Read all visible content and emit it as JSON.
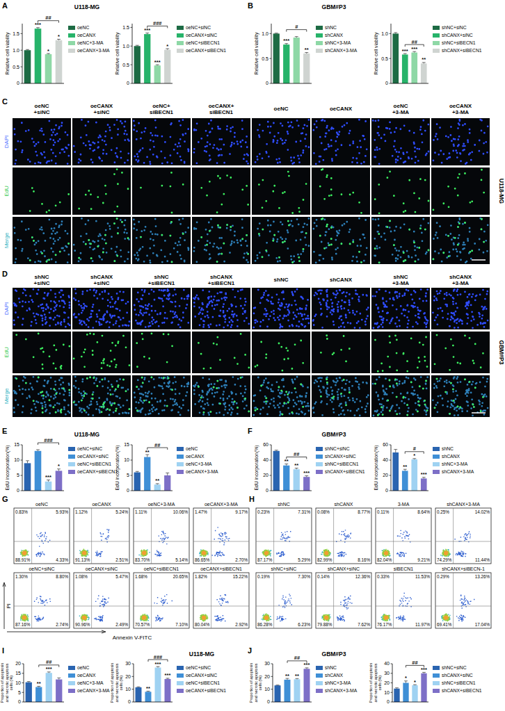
{
  "panels": [
    {
      "letter": "A",
      "title": "U118-MG"
    },
    {
      "letter": "B",
      "title": "GBM#P3"
    },
    {
      "letter": "C",
      "title": "U118-MG"
    },
    {
      "letter": "D",
      "title": "GBM#P3"
    },
    {
      "letter": "E",
      "title": "U118-MG"
    },
    {
      "letter": "F",
      "title": "GBM#P3"
    },
    {
      "letter": "G"
    },
    {
      "letter": "H"
    },
    {
      "letter": "I",
      "title": "U118-MG"
    },
    {
      "letter": "J",
      "title": "GBM#P3"
    }
  ],
  "chart_data": [
    {
      "type": "bar",
      "y_label": "Relative cell viability",
      "categories": [
        "oeNC",
        "oeCANX",
        "oeNC+3-MA",
        "oeCANX+3-MA"
      ],
      "values": [
        1.0,
        1.65,
        0.88,
        1.3
      ],
      "errors": [
        0.02,
        0.03,
        0.02,
        0.03
      ],
      "colors": [
        "#1d6b44",
        "#27b36a",
        "#8ed8a6",
        "#cfd4d1"
      ],
      "annotations": [
        null,
        "***",
        "*",
        "*"
      ],
      "bracket": {
        "categories": [
          "oeCANX",
          "oeCANX+3-MA"
        ],
        "label": "##"
      },
      "ylim": [
        0,
        1.8
      ],
      "yticks": [
        0,
        0.5,
        {
          "value": 1,
          "label": "1.0"
        },
        1.5
      ],
      "legend": "right",
      "tick_labels": "y",
      "grid": false
    },
    {
      "type": "bar",
      "y_label": "Relative cell viability",
      "categories": [
        "oeNC+siNC",
        "oeCANX+siNC",
        "oeNC+siBECN1",
        "oeCANX+siBECN1"
      ],
      "values": [
        1.0,
        1.32,
        0.48,
        0.9
      ],
      "errors": [
        0.02,
        0.03,
        0.02,
        0.03
      ],
      "colors": [
        "#1d6b44",
        "#27b36a",
        "#8ed8a6",
        "#cfd4d1"
      ],
      "annotations": [
        null,
        "***",
        "***",
        "*"
      ],
      "bracket": {
        "categories": [
          "oeCANX+siNC",
          "oeCANX+siBECN1"
        ],
        "label": "###"
      },
      "ylim": [
        0,
        1.6
      ],
      "yticks": [
        0,
        0.5,
        {
          "value": 1,
          "label": "1.0"
        },
        1.5
      ],
      "legend": "right",
      "tick_labels": "y",
      "grid": false
    },
    {
      "type": "bar",
      "y_label": "Relative cell viability",
      "categories": [
        "shNC",
        "shCANX",
        "shNC+3-MA",
        "shCANX+3-MA"
      ],
      "values": [
        1.0,
        0.78,
        0.92,
        0.6
      ],
      "errors": [
        0.01,
        0.02,
        0.02,
        0.02
      ],
      "colors": [
        "#1d6b44",
        "#27b36a",
        "#8ed8a6",
        "#cfd4d1"
      ],
      "annotations": [
        null,
        "***",
        null,
        "**"
      ],
      "bracket": {
        "categories": [
          "shCANX",
          "shCANX+3-MA"
        ],
        "label": "#"
      },
      "ylim": [
        0,
        1.2
      ],
      "yticks": [
        0,
        0.5,
        {
          "value": 1,
          "label": "1.0"
        }
      ],
      "legend": "right",
      "tick_labels": "y",
      "grid": false
    },
    {
      "type": "bar",
      "y_label": "Relative cell viability",
      "categories": [
        "shNC+siNC",
        "shCANX+siNC",
        "shNC+siBECN1",
        "shCANX+siBECN1"
      ],
      "values": [
        1.0,
        0.58,
        0.62,
        0.4
      ],
      "errors": [
        0.02,
        0.02,
        0.02,
        0.02
      ],
      "colors": [
        "#1d6b44",
        "#27b36a",
        "#8ed8a6",
        "#cfd4d1"
      ],
      "annotations": [
        null,
        "***",
        "***",
        "**"
      ],
      "bracket": {
        "categories": [
          "shCANX+siNC",
          "shCANX+siBECN1"
        ],
        "label": "##"
      },
      "ylim": [
        0,
        1.2
      ],
      "yticks": [
        0,
        0.5,
        {
          "value": 1,
          "label": "1.0"
        }
      ],
      "legend": "right",
      "tick_labels": "y",
      "grid": false
    },
    {
      "type": "bar",
      "y_label": "EdU incorporation(%)",
      "categories": [
        "oeNC+siNC",
        "oeCANX+siNC",
        "oeNC+siBECN1",
        "oeCANX+siBECN1"
      ],
      "values": [
        9,
        13,
        3,
        6.5
      ],
      "errors": [
        0.8,
        0.4,
        0.5,
        0.6
      ],
      "colors": [
        "#2a64b0",
        "#3f8fd6",
        "#9fd2f2",
        "#7d6fc7"
      ],
      "annotations": [
        null,
        null,
        "***",
        "*"
      ],
      "bracket": {
        "categories": [
          "oeCANX+siNC",
          "oeCANX+siBECN1"
        ],
        "label": "###"
      },
      "ylim": [
        0,
        15
      ],
      "yticks": [
        0,
        5,
        10,
        15
      ],
      "legend": "right",
      "tick_labels": "y",
      "grid": false
    },
    {
      "type": "bar",
      "y_label": "EdU incorporation(%)",
      "categories": [
        "oeNC",
        "oeCANX",
        "oeNC+3-MA",
        "oeCANX+3-MA"
      ],
      "values": [
        6,
        11,
        2,
        5
      ],
      "errors": [
        0.3,
        0.8,
        0.3,
        0.8
      ],
      "colors": [
        "#2a64b0",
        "#3f8fd6",
        "#9fd2f2",
        "#7d6fc7"
      ],
      "annotations": [
        null,
        "**",
        "**",
        null
      ],
      "bracket": {
        "categories": [
          "oeCANX",
          "oeCANX+3-MA"
        ],
        "label": "##"
      },
      "ylim": [
        0,
        15
      ],
      "yticks": [
        0,
        5,
        10,
        15
      ],
      "legend": "right",
      "tick_labels": "y",
      "grid": false
    },
    {
      "type": "bar",
      "y_label": "EdU incorporation(%)",
      "categories": [
        "shNC+siNC",
        "shCANX+siNC",
        "shNC+siBECN1",
        "shCANX+siBECN1"
      ],
      "values": [
        52,
        33,
        28,
        18
      ],
      "errors": [
        1,
        2,
        1.5,
        1.5
      ],
      "colors": [
        "#2a64b0",
        "#3f8fd6",
        "#9fd2f2",
        "#7d6fc7"
      ],
      "annotations": [
        null,
        "**",
        "**",
        "***"
      ],
      "bracket": {
        "categories": [
          "shCANX+siNC",
          "shCANX+siBECN1"
        ],
        "label": "##"
      },
      "ylim": [
        0,
        60
      ],
      "yticks": [
        0,
        20,
        40,
        60
      ],
      "legend": "right",
      "tick_labels": "y",
      "grid": false
    },
    {
      "type": "bar",
      "y_label": "EdU incorporation(%)",
      "categories": [
        "shNC",
        "shCANX",
        "shNC+3-MA",
        "shCANX+3-MA"
      ],
      "values": [
        50,
        26,
        41,
        16
      ],
      "errors": [
        4,
        2,
        1,
        1.5
      ],
      "colors": [
        "#2a64b0",
        "#3f8fd6",
        "#9fd2f2",
        "#7d6fc7"
      ],
      "annotations": [
        null,
        "**",
        "*",
        "***"
      ],
      "bracket": {
        "categories": [
          "shCANX",
          "shCANX+3-MA"
        ],
        "label": "#"
      },
      "ylim": [
        0,
        60
      ],
      "yticks": [
        0,
        20,
        40,
        60
      ],
      "legend": "right",
      "tick_labels": "y",
      "grid": false
    },
    {
      "type": "bar",
      "y_label": "Proportion of apoptosis and necrotic apoptosis cells (%)",
      "categories": [
        "oeNC",
        "oeCANX",
        "oeNC+3-MA",
        "oeCANX+3-MA"
      ],
      "values": [
        10.3,
        7.8,
        15.2,
        11.8
      ],
      "errors": [
        0.4,
        0.4,
        0.5,
        0.8
      ],
      "colors": [
        "#2a64b0",
        "#3f8fd6",
        "#9fd2f2",
        "#7d6fc7"
      ],
      "annotations": [
        null,
        "**",
        "***",
        null
      ],
      "bracket": {
        "categories": [
          "oeCANX",
          "oeCANX+3-MA"
        ],
        "label": "##"
      },
      "ylim": [
        0,
        20
      ],
      "yticks": [
        0,
        5,
        10,
        15,
        20
      ],
      "legend": "right",
      "tick_labels": "y",
      "grid": false
    },
    {
      "type": "bar",
      "y_label": "Proportion of apoptosis and necrotic apoptosis cells (%)",
      "categories": [
        "oeNC+siNC",
        "oeCANX+siNC",
        "oeNC+siBECN1",
        "oeCANX+siBECN1"
      ],
      "values": [
        11.5,
        8,
        27,
        18
      ],
      "errors": [
        0.4,
        0.5,
        0.8,
        0.6
      ],
      "colors": [
        "#2a64b0",
        "#3f8fd6",
        "#9fd2f2",
        "#7d6fc7"
      ],
      "annotations": [
        null,
        "**",
        "***",
        "***"
      ],
      "bracket": {
        "categories": [
          "oeCANX+siNC",
          "oeCANX+siBECN1"
        ],
        "label": "###"
      },
      "ylim": [
        0,
        30
      ],
      "yticks": [
        0,
        10,
        20,
        30
      ],
      "legend": "right",
      "tick_labels": "y",
      "grid": false
    },
    {
      "type": "bar",
      "y_label": "Proportion of apoptosis and necrotic apoptosis cells (%)",
      "categories": [
        "shNC",
        "shCANX",
        "shNC+3-MA",
        "shCANX+3-MA"
      ],
      "values": [
        13,
        17.5,
        17.8,
        26
      ],
      "errors": [
        0.3,
        1,
        0.6,
        0.8
      ],
      "colors": [
        "#2a64b0",
        "#3f8fd6",
        "#9fd2f2",
        "#7d6fc7"
      ],
      "annotations": [
        null,
        "**",
        "**",
        "***"
      ],
      "bracket": {
        "categories": [
          "shCANX",
          "shCANX+3-MA"
        ],
        "label": "##"
      },
      "ylim": [
        0,
        30
      ],
      "yticks": [
        0,
        10,
        20,
        30
      ],
      "legend": "right",
      "tick_labels": "y",
      "grid": false
    },
    {
      "type": "bar",
      "y_label": "Proportion of apoptosis and necrotic apoptosis cells (%)",
      "categories": [
        "shNC+siNC",
        "shCANX+siNC",
        "shNC+siBECN1",
        "shCANX+siBECN1"
      ],
      "values": [
        14,
        20,
        17.5,
        30
      ],
      "errors": [
        0.8,
        2,
        0.6,
        1
      ],
      "colors": [
        "#2a64b0",
        "#3f8fd6",
        "#9fd2f2",
        "#7d6fc7"
      ],
      "annotations": [
        null,
        "*",
        "*",
        "***"
      ],
      "bracket": {
        "categories": [
          "shCANX+siNC",
          "shCANX+siBECN1"
        ],
        "label": "##"
      },
      "ylim": [
        0,
        40
      ],
      "yticks": [
        0,
        10,
        20,
        30,
        40
      ],
      "legend": "right",
      "tick_labels": "y",
      "grid": false
    }
  ],
  "microscopy": [
    {
      "rows": [
        "DAPI",
        "EdU",
        "Merge"
      ],
      "columns": [
        [
          "oeNC",
          "+siNC"
        ],
        [
          "oeCANX",
          "+siNC"
        ],
        [
          "oeNC+",
          "siBECN1"
        ],
        [
          "oeCANX+",
          "siBECN1"
        ],
        [
          "oeNC"
        ],
        [
          "oeCANX"
        ],
        [
          "oeNC",
          "+3-MA"
        ],
        [
          "oeCANX",
          "+3-MA"
        ]
      ]
    },
    {
      "rows": [
        "DAPI",
        "EdU",
        "Merge"
      ],
      "columns": [
        [
          "shNC",
          "+siNC"
        ],
        [
          "shCANX",
          "+siNC"
        ],
        [
          "shNC",
          "+siBECN1"
        ],
        [
          "shCANX",
          "+siBECN1"
        ],
        [
          "shNC"
        ],
        [
          "shCANX"
        ],
        [
          "shNC",
          "+3-MA"
        ],
        [
          "shCANX",
          "+3-MA"
        ]
      ]
    }
  ],
  "flow_cytometry": {
    "x_label": "Annexin V-FITC",
    "y_label": "PI",
    "sets": [
      {
        "plots": [
          {
            "label": "oeNC",
            "quadrants": [
              "0.83%",
              "5.93%",
              "88.91%",
              "4.33%"
            ]
          },
          {
            "label": "oeCANX",
            "quadrants": [
              "1.12%",
              "5.24%",
              "91.13%",
              "2.51%"
            ]
          },
          {
            "label": "oeNC+3-MA",
            "quadrants": [
              "1.11%",
              "10.06%",
              "83.70%",
              "5.14%"
            ]
          },
          {
            "label": "oeCANX+3-MA",
            "quadrants": [
              "1.47%",
              "9.17%",
              "86.65%",
              "2.70%"
            ]
          },
          {
            "label": "oeNC+siNC",
            "quadrants": [
              "1.30%",
              "8.80%",
              "87.16%",
              "2.74%"
            ]
          },
          {
            "label": "oeCANX+siNC",
            "quadrants": [
              "1.08%",
              "5.47%",
              "90.96%",
              "2.49%"
            ]
          },
          {
            "label": "oeNC+siBECN1",
            "quadrants": [
              "1.68%",
              "20.65%",
              "70.57%",
              "7.10%"
            ]
          },
          {
            "label": "oeCANX+siBECN1",
            "quadrants": [
              "1.82%",
              "15.22%",
              "80.04%",
              "2.92%"
            ]
          }
        ]
      },
      {
        "plots": [
          {
            "label": "shNC",
            "quadrants": [
              "0.23%",
              "7.31%",
              "87.17%",
              "5.29%"
            ]
          },
          {
            "label": "shCANX",
            "quadrants": [
              "0.08%",
              "8.77%",
              "82.99%",
              "8.16%"
            ]
          },
          {
            "label": "3-MA",
            "quadrants": [
              "0.11%",
              "8.64%",
              "82.04%",
              "9.21%"
            ]
          },
          {
            "label": "shCANX+3-MA",
            "quadrants": [
              "0.25%",
              "14.02%",
              "74.29%",
              "11.44%"
            ]
          },
          {
            "label": "shNC+siNC",
            "quadrants": [
              "0.19%",
              "7.30%",
              "86.28%",
              "6.23%"
            ]
          },
          {
            "label": "shCANX+siNC",
            "quadrants": [
              "0.14%",
              "12.36%",
              "79.88%",
              "7.62%"
            ]
          },
          {
            "label": "siBECN1",
            "quadrants": [
              "0.33%",
              "11.53%",
              "76.17%",
              "11.97%"
            ]
          },
          {
            "label": "shCANX+siBECN-1",
            "quadrants": [
              "0.29%",
              "13.26%",
              "69.41%",
              "17.04%"
            ]
          }
        ]
      }
    ]
  }
}
